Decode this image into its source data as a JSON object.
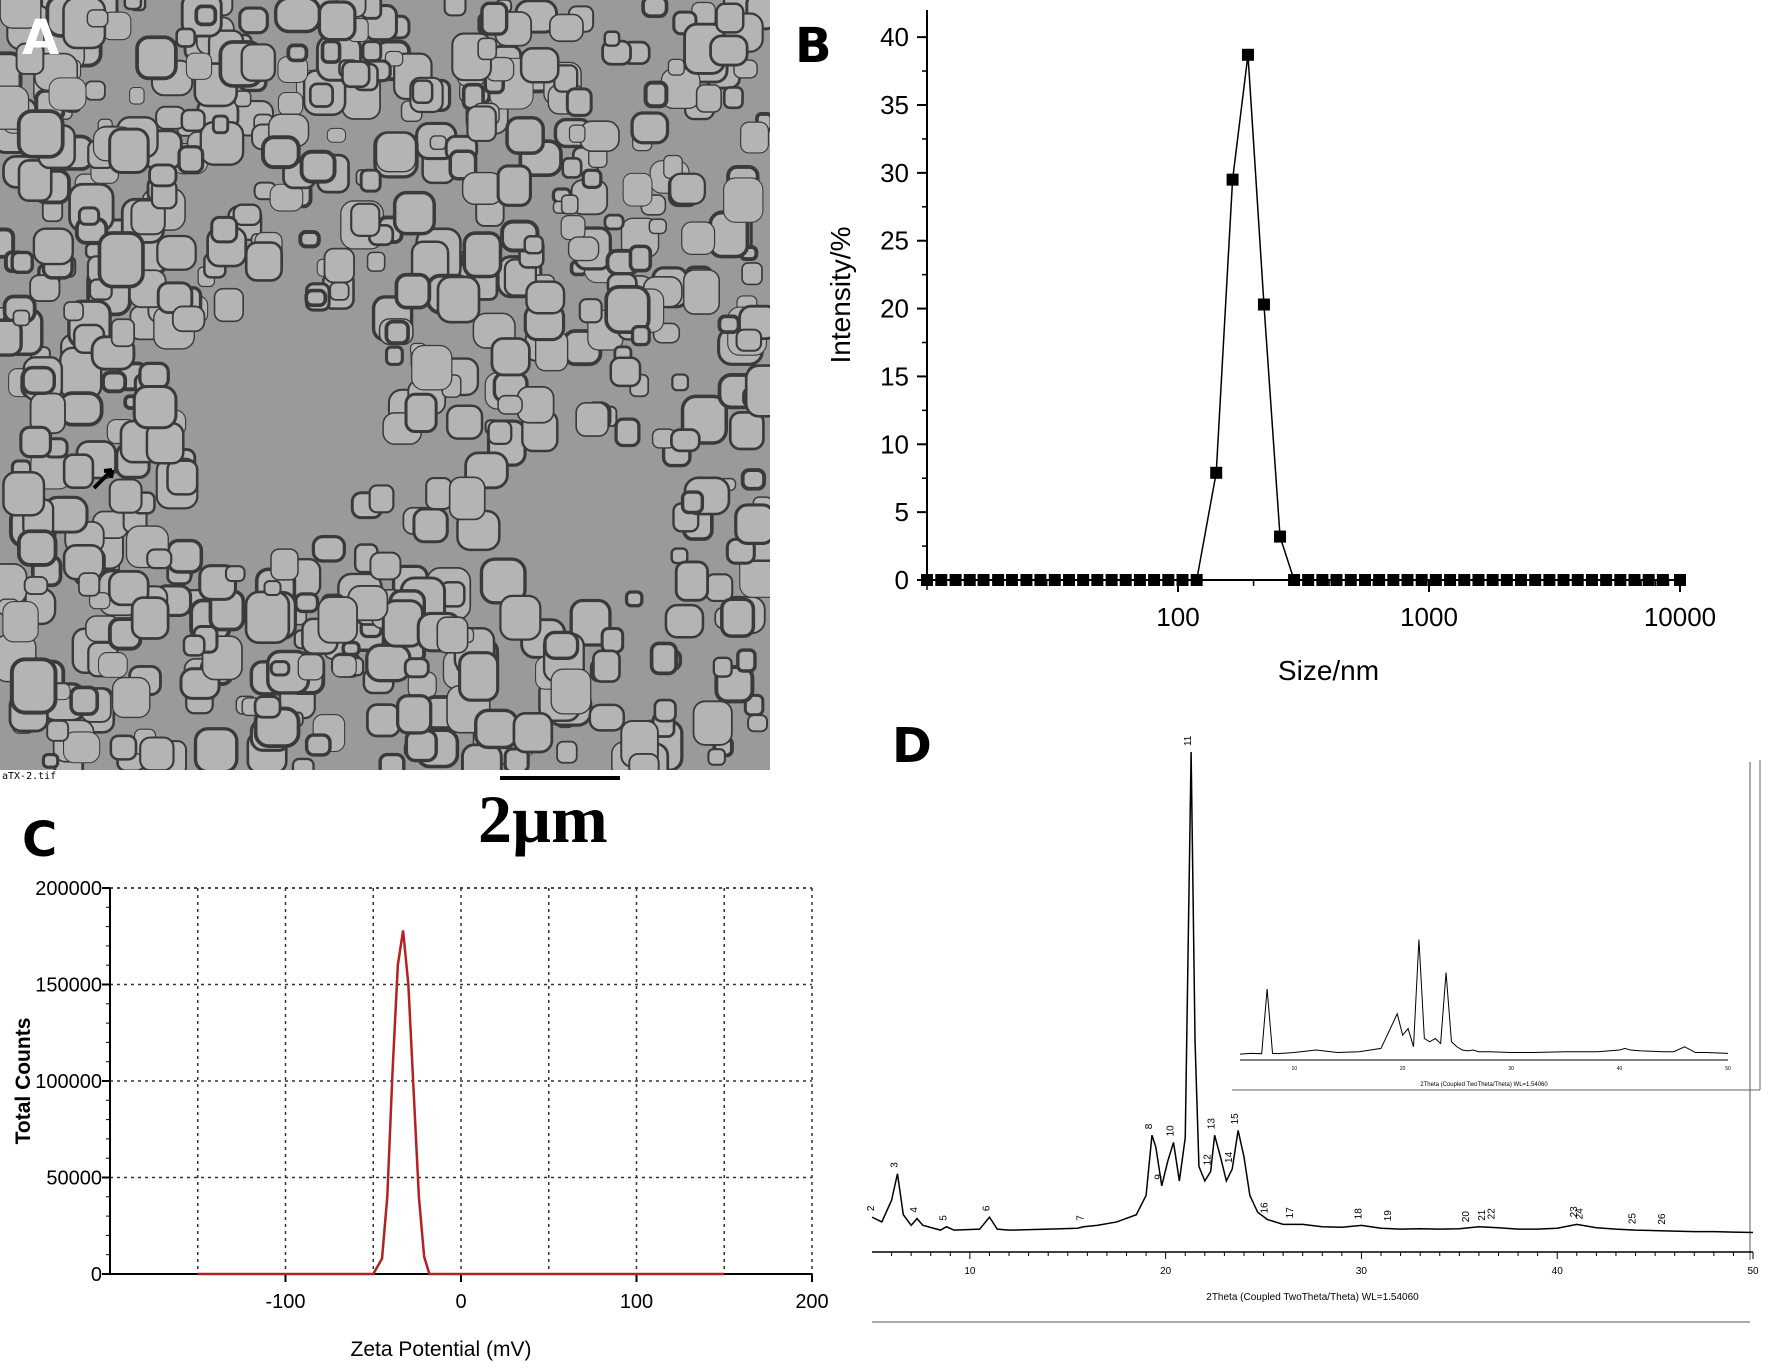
{
  "panels": {
    "a_label": "A",
    "b_label": "B",
    "c_label": "C",
    "d_label": "D"
  },
  "tem": {
    "filename": "aTX-2.tif",
    "scale_bar": "2µm"
  },
  "chart_data": [
    {
      "id": "B",
      "type": "scatter",
      "xlabel": "Size/nm",
      "ylabel": "Intensity/%",
      "x_scale": "log",
      "xlim": [
        10,
        10000
      ],
      "ylim": [
        0,
        42
      ],
      "x_ticks": [
        100,
        1000,
        10000
      ],
      "x_tick_labels": [
        "100",
        "1000",
        "10000"
      ],
      "y_ticks": [
        0,
        5,
        10,
        15,
        20,
        25,
        30,
        35,
        40
      ],
      "y_tick_labels": [
        "0",
        "5",
        "10",
        "15",
        "20",
        "25",
        "30",
        "35",
        "40"
      ],
      "grid": false,
      "marker": "square",
      "color": "#000000",
      "x": [
        10,
        11.4,
        13,
        14.8,
        16.8,
        19.2,
        21.8,
        24.9,
        28.3,
        32.3,
        36.8,
        41.9,
        47.7,
        54.4,
        61.9,
        70.5,
        80.3,
        91.5,
        104.2,
        118.7,
        142,
        165,
        190,
        220,
        255,
        290,
        330,
        376,
        428,
        488,
        556,
        633,
        721,
        821,
        935,
        1065,
        1213,
        1382,
        1574,
        1793,
        2042,
        2326,
        2649,
        3017,
        3436,
        3914,
        4458,
        5078,
        5783,
        6587,
        7503,
        8546,
        10000
      ],
      "y": [
        0,
        0,
        0,
        0,
        0,
        0,
        0,
        0,
        0,
        0,
        0,
        0,
        0,
        0,
        0,
        0,
        0,
        0,
        0,
        0,
        7.9,
        29.5,
        38.7,
        20.3,
        3.2,
        0,
        0,
        0,
        0,
        0,
        0,
        0,
        0,
        0,
        0,
        0,
        0,
        0,
        0,
        0,
        0,
        0,
        0,
        0,
        0,
        0,
        0,
        0,
        0,
        0,
        0,
        0,
        0
      ]
    },
    {
      "id": "C",
      "type": "line",
      "xlabel": "Zeta Potential (mV)",
      "ylabel": "Total Counts",
      "xlim": [
        -200,
        200
      ],
      "ylim": [
        0,
        200000
      ],
      "x_ticks": [
        -100,
        0,
        100,
        200
      ],
      "x_tick_labels": [
        "-100",
        "0",
        "100",
        "200"
      ],
      "y_ticks": [
        0,
        50000,
        100000,
        150000,
        200000
      ],
      "y_tick_labels": [
        "0",
        "50000",
        "100000",
        "150000",
        "200000"
      ],
      "grid": true,
      "color": "#b22222",
      "x": [
        -150,
        -50,
        -45,
        -42,
        -39,
        -36,
        -33,
        -30,
        -27,
        -24,
        -21,
        -18,
        150
      ],
      "y": [
        0,
        0,
        8000,
        40000,
        105000,
        160000,
        178000,
        150000,
        95000,
        40000,
        9000,
        0,
        0
      ]
    },
    {
      "id": "D",
      "type": "line",
      "xlabel": "2Theta (Coupled TwoTheta/Theta) WL=1.54060",
      "xlim": [
        5,
        50
      ],
      "ylim": [
        0,
        100
      ],
      "x_ticks": [
        10,
        20,
        30,
        40,
        50
      ],
      "x_tick_labels": [
        "10",
        "20",
        "30",
        "40",
        "50"
      ],
      "grid": false,
      "color": "#000000",
      "x": [
        5,
        5.5,
        6,
        6.3,
        6.6,
        7,
        7.3,
        7.6,
        8.5,
        8.8,
        9.2,
        10.5,
        11,
        11.4,
        12,
        14,
        15.5,
        15.8,
        16.5,
        17.5,
        18.5,
        19,
        19.3,
        19.5,
        19.8,
        20.1,
        20.4,
        20.7,
        21,
        21.3,
        21.5,
        21.7,
        22,
        22.3,
        22.5,
        22.8,
        23.1,
        23.4,
        23.7,
        24,
        24.3,
        24.7,
        25.2,
        26,
        27,
        28,
        29,
        30,
        31,
        32,
        33,
        34,
        35,
        36,
        37,
        38,
        39,
        40,
        41,
        42,
        43,
        44,
        45,
        46,
        47,
        48,
        49,
        50
      ],
      "y": [
        3.5,
        2.5,
        7,
        12.5,
        4,
        1.8,
        3.2,
        1.8,
        0.8,
        1.5,
        0.8,
        1,
        3.5,
        1,
        0.8,
        1,
        1.2,
        1.5,
        1.8,
        2.5,
        4,
        8,
        20.5,
        18,
        10,
        15,
        19,
        11,
        20,
        100,
        40,
        14,
        11,
        13,
        20.5,
        16,
        11,
        13.5,
        21.5,
        16,
        8,
        4.5,
        3,
        2,
        2,
        1.5,
        1.4,
        1.8,
        1.2,
        1,
        1.1,
        1,
        1.1,
        1.5,
        1.3,
        1,
        1,
        1.2,
        2,
        1.3,
        1,
        0.8,
        0.7,
        0.6,
        0.5,
        0.5,
        0.4,
        0.3
      ],
      "peaks": [
        {
          "label": "2",
          "x": 5.1,
          "y": 3.5
        },
        {
          "label": "3",
          "x": 6.3,
          "y": 12.5
        },
        {
          "label": "4",
          "x": 7.3,
          "y": 3.2
        },
        {
          "label": "5",
          "x": 8.8,
          "y": 1.5
        },
        {
          "label": "6",
          "x": 11,
          "y": 3.5
        },
        {
          "label": "7",
          "x": 15.8,
          "y": 1.5
        },
        {
          "label": "8",
          "x": 19.3,
          "y": 20.5
        },
        {
          "label": "9",
          "x": 19.8,
          "y": 10
        },
        {
          "label": "10",
          "x": 20.4,
          "y": 19
        },
        {
          "label": "11",
          "x": 21.3,
          "y": 100
        },
        {
          "label": "12",
          "x": 22.3,
          "y": 13
        },
        {
          "label": "13",
          "x": 22.5,
          "y": 20.5
        },
        {
          "label": "14",
          "x": 23.4,
          "y": 13.5
        },
        {
          "label": "15",
          "x": 23.7,
          "y": 21.5
        },
        {
          "label": "16",
          "x": 25.2,
          "y": 3
        },
        {
          "label": "17",
          "x": 26.5,
          "y": 2
        },
        {
          "label": "18",
          "x": 30,
          "y": 1.8
        },
        {
          "label": "19",
          "x": 31.5,
          "y": 1.4
        },
        {
          "label": "20",
          "x": 35.5,
          "y": 1.2
        },
        {
          "label": "21",
          "x": 36.3,
          "y": 1.5
        },
        {
          "label": "22",
          "x": 36.8,
          "y": 1.8
        },
        {
          "label": "23",
          "x": 41,
          "y": 2.2
        },
        {
          "label": "24",
          "x": 41.3,
          "y": 1.8
        },
        {
          "label": "25",
          "x": 44,
          "y": 0.8
        },
        {
          "label": "26",
          "x": 45.5,
          "y": 0.7
        }
      ],
      "inset": {
        "xlabel": "2Theta (Coupled TwoTheta/Theta) WL=1.54060",
        "xlim": [
          5,
          50
        ],
        "x_ticks": [
          10,
          20,
          30,
          40,
          50
        ],
        "x_tick_labels": [
          "10",
          "20",
          "30",
          "40",
          "50"
        ],
        "x": [
          5,
          6,
          7,
          7.5,
          8,
          8.5,
          10,
          12,
          14,
          16,
          18,
          19.5,
          20,
          20.5,
          21,
          21.5,
          22,
          22.5,
          23,
          23.5,
          24,
          24.5,
          25,
          25.5,
          26,
          26.5,
          27,
          28,
          30,
          32,
          35,
          38,
          40,
          40.5,
          41,
          42,
          44,
          45,
          46,
          47,
          48,
          50
        ],
        "y": [
          0.5,
          1,
          0.8,
          40,
          1,
          0.8,
          1.5,
          3,
          1.5,
          2,
          4,
          25,
          12,
          16,
          5,
          70,
          10,
          8,
          10,
          7,
          50,
          8,
          5,
          3,
          2.5,
          3,
          2,
          2,
          1.5,
          1.5,
          2,
          2,
          3,
          4,
          3,
          2.5,
          2,
          2,
          5,
          1.5,
          1.5,
          1
        ]
      }
    }
  ]
}
